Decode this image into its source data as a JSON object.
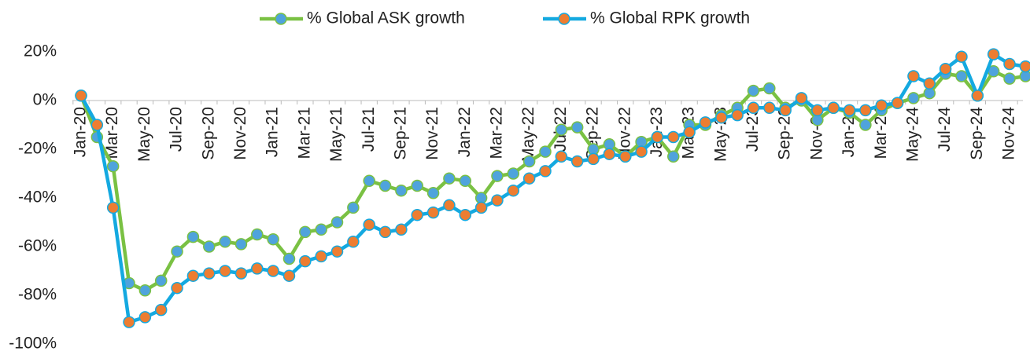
{
  "chart_data": {
    "type": "line",
    "categories": [
      "Jan-20",
      null,
      "Mar-20",
      null,
      "May-20",
      null,
      "Jul-20",
      null,
      "Sep-20",
      null,
      "Nov-20",
      null,
      "Jan-21",
      null,
      "Mar-21",
      null,
      "May-21",
      null,
      "Jul-21",
      null,
      "Sep-21",
      null,
      "Nov-21",
      null,
      "Jan-22",
      null,
      "Mar-22",
      null,
      "May-22",
      null,
      "Jul-22",
      null,
      "Sep-22",
      null,
      "Nov-22",
      null,
      "Jan-23",
      null,
      "Mar-23",
      null,
      "May-23",
      null,
      "Jul-23",
      null,
      "Sep-23",
      null,
      "Nov-23",
      null,
      "Jan-24",
      null,
      "Mar-24",
      null,
      "May-24",
      null,
      "Jul-24",
      null,
      "Sep-24",
      null,
      "Nov-24",
      null
    ],
    "series": [
      {
        "name": "% Global ASK growth",
        "color": "#7ac143",
        "marker_color": "#4fa3dc",
        "values": [
          2,
          -15,
          -27,
          -75,
          -78,
          -74,
          -62,
          -56,
          -60,
          -58,
          -59,
          -55,
          -57,
          -65,
          -54,
          -53,
          -50,
          -44,
          -33,
          -35,
          -37,
          -35,
          -38,
          -32,
          -33,
          -40,
          -31,
          -30,
          -25,
          -21,
          -12,
          -11,
          -20,
          -18,
          -23,
          -17,
          -15,
          -23,
          -10,
          -10,
          -6,
          -3,
          4,
          5,
          -3,
          0,
          -8,
          -3,
          -5,
          -10,
          -4,
          -1,
          1,
          3,
          11,
          10,
          2,
          12,
          9,
          10
        ]
      },
      {
        "name": "% Global RPK growth",
        "color": "#14a9e0",
        "marker_color": "#ed7d31",
        "values": [
          2,
          -10,
          -44,
          -91,
          -89,
          -86,
          -77,
          -72,
          -71,
          -70,
          -71,
          -69,
          -70,
          -72,
          -66,
          -64,
          -62,
          -58,
          -51,
          -54,
          -53,
          -47,
          -46,
          -43,
          -47,
          -44,
          -41,
          -37,
          -32,
          -29,
          -23,
          -25,
          -24,
          -22,
          -23,
          -21,
          -15,
          -15,
          -13,
          -9,
          -7,
          -6,
          -3,
          -3,
          -4,
          1,
          -4,
          -3,
          -4,
          -4,
          -2,
          -1,
          10,
          7,
          13,
          18,
          2,
          19,
          15,
          14
        ]
      }
    ],
    "ylim": [
      -100,
      20
    ],
    "yticks": [
      {
        "value": -100,
        "label": "-100%"
      },
      {
        "value": -80,
        "label": "-80%"
      },
      {
        "value": -60,
        "label": "-60%"
      },
      {
        "value": -40,
        "label": "-40%"
      },
      {
        "value": -20,
        "label": "-20%"
      },
      {
        "value": 0,
        "label": "0%"
      },
      {
        "value": 20,
        "label": "20%"
      }
    ],
    "grid": false,
    "legend": "top"
  }
}
